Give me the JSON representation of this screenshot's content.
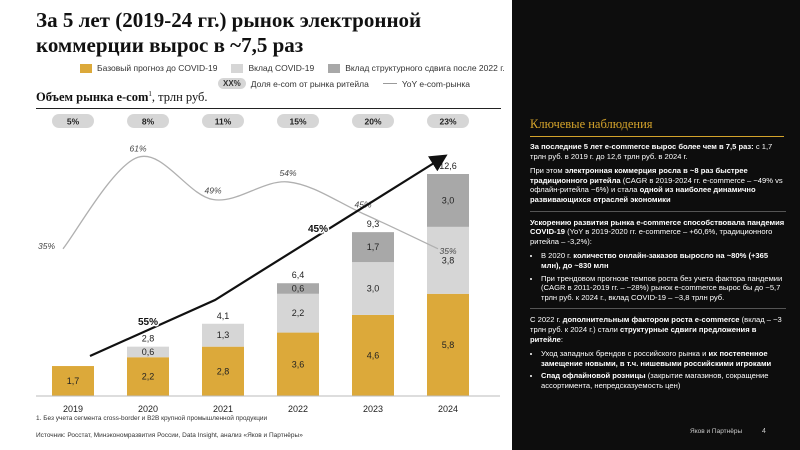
{
  "title": "За 5 лет (2019-24 гг.) рынок электронной коммерции вырос в ~7,5 раз",
  "legend": {
    "base": "Базовый прогноз до COVID-19",
    "covid": "Вклад COVID-19",
    "structural": "Вклад структурного сдвига после 2022 г.",
    "share_badge": "XX%",
    "share": "Доля e-com от рынка ритейла",
    "yoy": "YoY e-com-рынка"
  },
  "chart_title": {
    "bold": "Объем рынка e-com",
    "sup": "1",
    "rest": ", трлн руб."
  },
  "chart_data": {
    "type": "bar",
    "stacked": true,
    "categories": [
      "2019",
      "2020",
      "2021",
      "2022",
      "2023",
      "2024"
    ],
    "series": [
      {
        "name": "Базовый прогноз до COVID-19",
        "color": "#dca93a",
        "values": [
          1.7,
          2.2,
          2.8,
          3.6,
          4.6,
          5.8
        ],
        "labels": [
          "1,7",
          "2,2",
          "2,8",
          "3,6",
          "4,6",
          "5,8"
        ]
      },
      {
        "name": "Вклад COVID-19",
        "color": "#d6d6d6",
        "values": [
          0,
          0.6,
          1.3,
          2.2,
          3.0,
          3.8
        ],
        "labels": [
          "",
          "0,6",
          "1,3",
          "2,2",
          "3,0",
          "3,8"
        ]
      },
      {
        "name": "Вклад структурного сдвига после 2022 г.",
        "color": "#a8a8a8",
        "values": [
          0,
          0,
          0,
          0.6,
          1.7,
          3.0
        ],
        "labels": [
          "",
          "",
          "",
          "0,6",
          "1,7",
          "3,0"
        ]
      }
    ],
    "totals": [
      1.7,
      2.8,
      4.1,
      6.4,
      9.3,
      12.6
    ],
    "total_labels": [
      "",
      "2,8",
      "4,1",
      "6,4",
      "9,3",
      "12,6"
    ],
    "share": [
      "5%",
      "8%",
      "11%",
      "15%",
      "20%",
      "23%"
    ],
    "yoy": {
      "name": "YoY e-com-рынка",
      "values": [
        35,
        61,
        49,
        54,
        45,
        35
      ],
      "labels": [
        "35%",
        "61%",
        "49%",
        "54%",
        "45%",
        "35%"
      ]
    },
    "cagr": [
      {
        "label": "55%",
        "from": "2019",
        "to": "2021"
      },
      {
        "label": "45%",
        "from": "2021",
        "to": "2024"
      }
    ],
    "ylim": [
      0,
      12.6
    ]
  },
  "footnote": "1.    Без учета сегмента cross-border и B2B крупной промышленной продукции",
  "source": "Источник: Росстат, Минэкономразвития России, Data Insight, анализ «Яков и Партнёры»",
  "panel": {
    "title": "Ключевые наблюдения",
    "p1_bold": "За последние 5 лет e-commerce вырос более чем в 7,5 раз:",
    "p1_rest": " с 1,7 трлн руб. в 2019 г. до 12,6 трлн руб. в 2024 г.",
    "p2_a": "При этом ",
    "p2_b": "электронная коммерция росла в ~8 раз быстрее традиционного ритейла",
    "p2_c": " (CAGR в 2019-2024 гг. e-commerce – ~49% vs офлайн-ритейла ~6%) и стала ",
    "p2_d": "одной из наиболее динамично развивающихся отраслей экономики",
    "p3_bold": "Ускорению развития рынка e-commerce способствовала пандемия COVID-19",
    "p3_rest": " (YoY в 2019-2020 гг. e-commerce – +60,6%, традиционного ритейла – -3,2%):",
    "b1_a": "В 2020 г. ",
    "b1_b": "количество онлайн-заказов выросло на ~80% (+365 млн), до ~830 млн",
    "b2": "При трендовом прогнозе темпов роста без учета фактора пандемии (CAGR в 2011-2019 гг. – ~28%) рынок e-commerce вырос бы до ~5,7 трлн руб. к 2024 г., вклад COVID-19 – ~3,8 трлн руб.",
    "p4_a": "С 2022 г. ",
    "p4_b": "дополнительным фактором роста e-commerce",
    "p4_c": " (вклад – ~3 трлн руб. к 2024 г.) стали ",
    "p4_d": "структурные сдвиги предложения в ритейле",
    "p4_e": ":",
    "b3_a": "Уход западных брендов с российского рынка и ",
    "b3_b": "их постепенное замещение новыми, в т.ч. нишевыми российскими игроками",
    "b4_a": "Спад офлайновой розницы",
    "b4_b": " (закрытие магазинов, сокращение ассортимента, непредсказуемость цен)"
  },
  "brand": "Яков и Партнёры",
  "page": "4"
}
